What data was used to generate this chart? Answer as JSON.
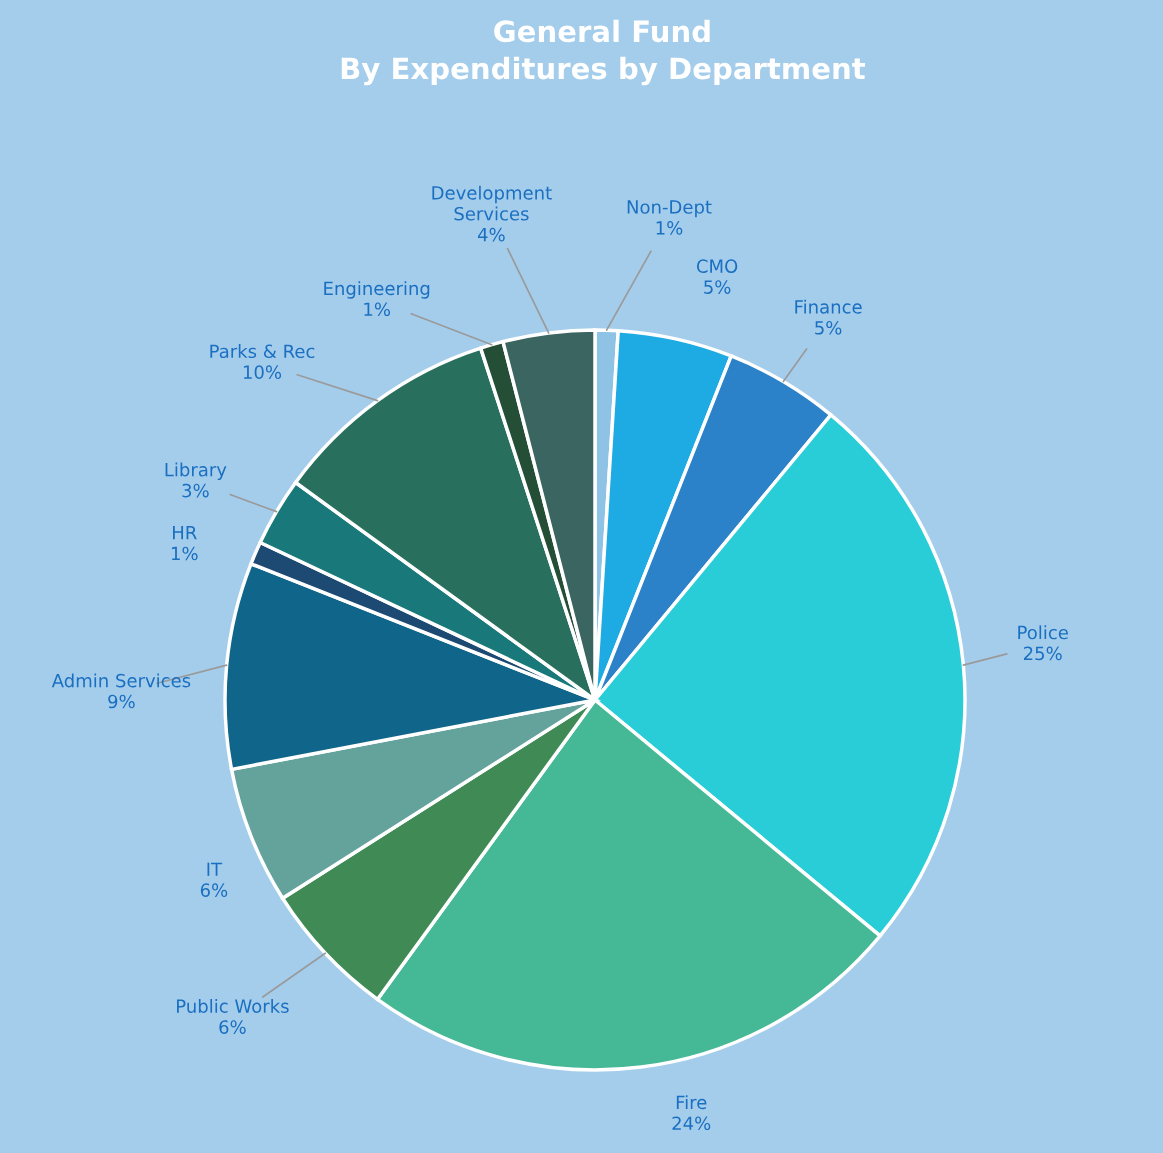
{
  "chart_data": {
    "type": "pie",
    "title": "General Fund\nBy Expenditures by Department",
    "categories": [
      "Non-Dept",
      "CMO",
      "Finance",
      "Police",
      "Fire",
      "Public Works",
      "IT",
      "Admin Services",
      "HR",
      "Library",
      "Parks & Rec",
      "Engineering",
      "Development Services"
    ],
    "values": [
      1,
      5,
      5,
      25,
      24,
      6,
      6,
      9,
      1,
      3,
      10,
      1,
      4
    ],
    "colors": [
      "#8fc3e6",
      "#1eaae2",
      "#2b82c9",
      "#29cdd8",
      "#45b896",
      "#3f8a55",
      "#64a29c",
      "#10668a",
      "#1c4a72",
      "#18787a",
      "#28705d",
      "#244e35",
      "#3b6560"
    ],
    "value_labels": [
      "1%",
      "5%",
      "5%",
      "25%",
      "24%",
      "6%",
      "6%",
      "9%",
      "1%",
      "3%",
      "10%",
      "1%",
      "4%"
    ]
  }
}
